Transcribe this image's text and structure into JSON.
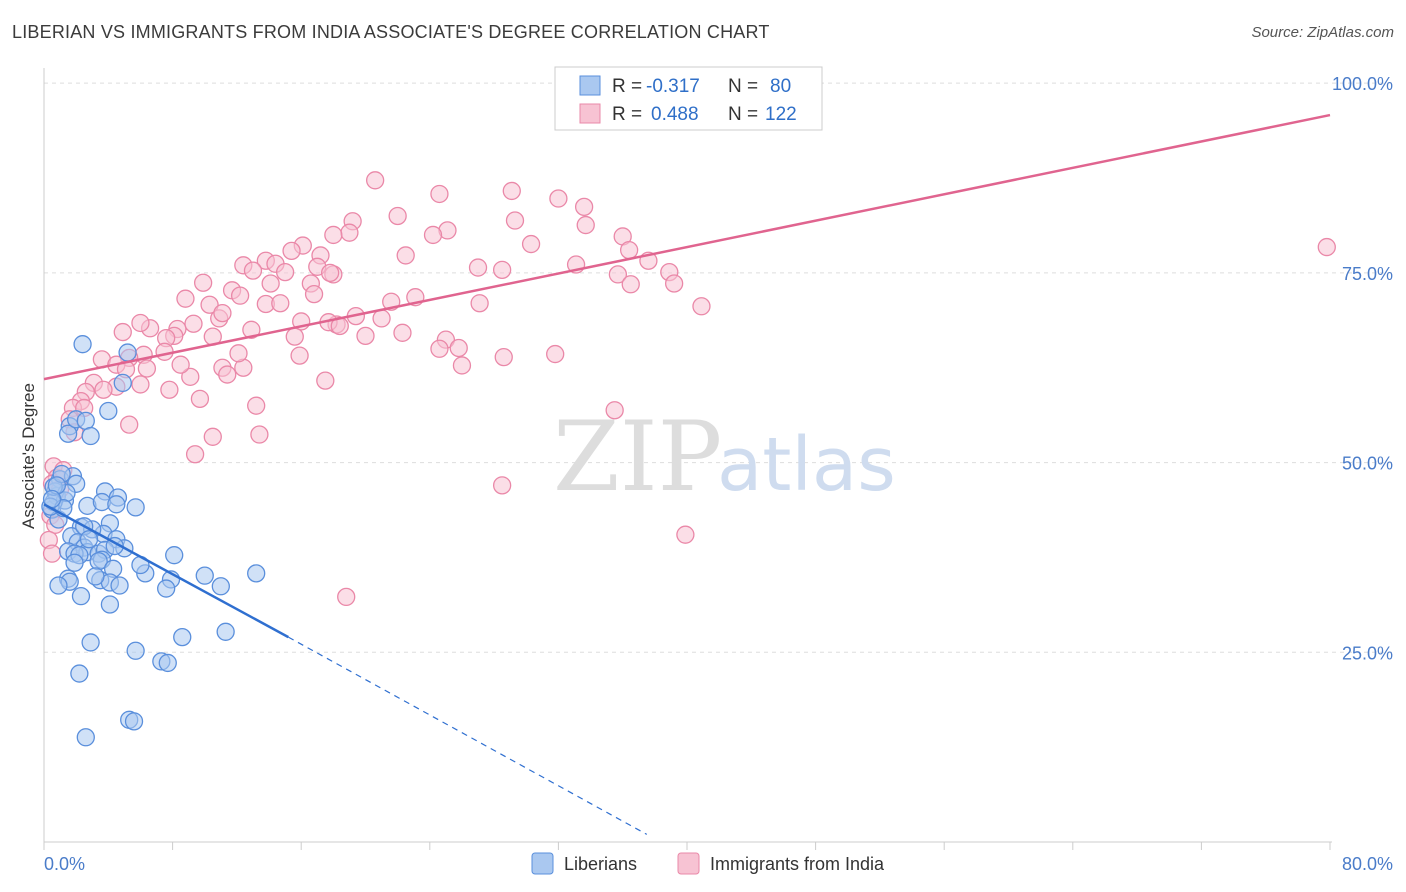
{
  "title": "LIBERIAN VS IMMIGRANTS FROM INDIA ASSOCIATE'S DEGREE CORRELATION CHART",
  "source": "Source: ZipAtlas.com",
  "watermark": {
    "zip": "ZIP",
    "atlas": "atlas"
  },
  "colors": {
    "blue_fill": "#aac8f0",
    "blue_stroke": "#5a8fdc",
    "blue_line": "#2f6fd0",
    "pink_fill": "#f7c3d3",
    "pink_stroke": "#ea88a8",
    "pink_line": "#e0648f",
    "grid": "#dddddd",
    "tick_text": "#4a7cc9"
  },
  "legend": {
    "rows": [
      {
        "r_label": "R =",
        "r_value": "-0.317",
        "n_label": "N =",
        "n_value": "80"
      },
      {
        "r_label": "R =",
        "r_value": "0.488",
        "n_label": "N =",
        "n_value": "122"
      }
    ]
  },
  "bottom_legend": [
    "Liberians",
    "Immigrants from India"
  ],
  "chart_data": {
    "type": "scatter",
    "ylabel": "Associate's Degree",
    "xlim": [
      0,
      80
    ],
    "ylim": [
      0,
      102
    ],
    "x_ticks": [
      "0.0%",
      "80.0%"
    ],
    "y_ticks": [
      {
        "value": 100,
        "label": "100.0%"
      },
      {
        "value": 75,
        "label": "75.0%"
      },
      {
        "value": 50,
        "label": "50.0%"
      },
      {
        "value": 25,
        "label": "25.0%"
      }
    ],
    "series": [
      {
        "name": "Liberians",
        "color": "blue",
        "trend": {
          "x0": 0,
          "y0": 44.5,
          "x1": 15.2,
          "y1": 27.0,
          "dash_to_x": 37.5,
          "dash_to_y": 1.0
        },
        "points": [
          [
            0.5,
            43.8
          ],
          [
            0.8,
            45.6
          ],
          [
            1.0,
            47.8
          ],
          [
            0.7,
            46.2
          ],
          [
            1.3,
            45.0
          ],
          [
            0.6,
            44.8
          ],
          [
            0.9,
            42.5
          ],
          [
            0.4,
            44.2
          ],
          [
            2.4,
            65.6
          ],
          [
            5.2,
            64.5
          ],
          [
            4.9,
            60.5
          ],
          [
            4.0,
            56.8
          ],
          [
            1.6,
            54.8
          ],
          [
            1.5,
            53.8
          ],
          [
            2.0,
            55.7
          ],
          [
            2.6,
            55.5
          ],
          [
            2.9,
            53.5
          ],
          [
            1.8,
            48.2
          ],
          [
            2.0,
            47.2
          ],
          [
            3.8,
            46.2
          ],
          [
            4.6,
            45.4
          ],
          [
            2.7,
            44.3
          ],
          [
            3.6,
            44.8
          ],
          [
            4.5,
            44.5
          ],
          [
            5.7,
            44.1
          ],
          [
            1.4,
            46.0
          ],
          [
            2.3,
            41.5
          ],
          [
            4.1,
            42.0
          ],
          [
            3.7,
            40.6
          ],
          [
            4.5,
            39.9
          ],
          [
            1.7,
            40.3
          ],
          [
            2.1,
            39.5
          ],
          [
            2.5,
            38.8
          ],
          [
            1.5,
            38.3
          ],
          [
            2.7,
            38.2
          ],
          [
            3.4,
            38.0
          ],
          [
            3.8,
            38.5
          ],
          [
            1.9,
            38.0
          ],
          [
            3.6,
            37.2
          ],
          [
            2.2,
            37.8
          ],
          [
            3.4,
            37.0
          ],
          [
            8.1,
            37.8
          ],
          [
            4.3,
            36.0
          ],
          [
            6.3,
            35.4
          ],
          [
            7.9,
            34.6
          ],
          [
            10.0,
            35.1
          ],
          [
            13.2,
            35.4
          ],
          [
            1.5,
            34.7
          ],
          [
            1.6,
            34.3
          ],
          [
            3.5,
            34.5
          ],
          [
            4.1,
            34.2
          ],
          [
            4.7,
            33.8
          ],
          [
            0.9,
            33.8
          ],
          [
            7.6,
            33.4
          ],
          [
            11.0,
            33.7
          ],
          [
            2.3,
            32.4
          ],
          [
            4.1,
            31.3
          ],
          [
            8.6,
            27.0
          ],
          [
            11.3,
            27.7
          ],
          [
            2.9,
            26.3
          ],
          [
            5.7,
            25.2
          ],
          [
            7.3,
            23.8
          ],
          [
            7.7,
            23.6
          ],
          [
            2.2,
            22.2
          ],
          [
            5.3,
            16.1
          ],
          [
            5.6,
            15.9
          ],
          [
            2.6,
            13.8
          ],
          [
            0.6,
            46.8
          ],
          [
            1.1,
            48.5
          ],
          [
            0.8,
            47.0
          ],
          [
            1.2,
            44.0
          ],
          [
            0.5,
            45.2
          ],
          [
            3.0,
            41.2
          ],
          [
            2.5,
            41.6
          ],
          [
            5.0,
            38.7
          ],
          [
            6.0,
            36.5
          ],
          [
            3.2,
            35.0
          ],
          [
            1.9,
            36.8
          ],
          [
            2.8,
            39.9
          ],
          [
            4.4,
            39.0
          ]
        ]
      },
      {
        "name": "Immigrants from India",
        "color": "pink",
        "trend": {
          "x0": 0,
          "y0": 61.0,
          "x1": 80,
          "y1": 95.8
        },
        "points": [
          [
            20.6,
            87.2
          ],
          [
            24.6,
            85.4
          ],
          [
            29.1,
            85.8
          ],
          [
            32.0,
            84.8
          ],
          [
            33.6,
            83.7
          ],
          [
            22.0,
            82.5
          ],
          [
            19.2,
            81.8
          ],
          [
            29.3,
            81.9
          ],
          [
            33.7,
            81.3
          ],
          [
            25.1,
            80.6
          ],
          [
            19.0,
            80.3
          ],
          [
            18.0,
            80.0
          ],
          [
            24.2,
            80.0
          ],
          [
            36.0,
            79.8
          ],
          [
            22.5,
            77.3
          ],
          [
            16.1,
            78.6
          ],
          [
            15.4,
            77.9
          ],
          [
            17.2,
            77.3
          ],
          [
            30.3,
            78.8
          ],
          [
            36.4,
            78.0
          ],
          [
            79.8,
            78.4
          ],
          [
            13.8,
            76.6
          ],
          [
            14.4,
            76.2
          ],
          [
            12.4,
            76.0
          ],
          [
            13.0,
            75.3
          ],
          [
            15.0,
            75.1
          ],
          [
            17.0,
            75.8
          ],
          [
            18.0,
            74.8
          ],
          [
            17.8,
            75.0
          ],
          [
            27.0,
            75.7
          ],
          [
            28.5,
            75.4
          ],
          [
            33.1,
            76.1
          ],
          [
            35.7,
            74.8
          ],
          [
            9.9,
            73.7
          ],
          [
            11.7,
            72.7
          ],
          [
            12.2,
            72.0
          ],
          [
            8.8,
            71.6
          ],
          [
            16.6,
            73.6
          ],
          [
            14.1,
            73.6
          ],
          [
            16.8,
            72.2
          ],
          [
            13.8,
            70.9
          ],
          [
            10.3,
            70.8
          ],
          [
            10.9,
            69.0
          ],
          [
            11.1,
            69.7
          ],
          [
            16.0,
            68.6
          ],
          [
            19.4,
            69.3
          ],
          [
            18.2,
            68.2
          ],
          [
            17.7,
            68.5
          ],
          [
            21.6,
            71.2
          ],
          [
            23.1,
            71.8
          ],
          [
            27.1,
            71.0
          ],
          [
            36.5,
            73.5
          ],
          [
            40.9,
            70.6
          ],
          [
            6.6,
            67.7
          ],
          [
            4.9,
            67.2
          ],
          [
            8.3,
            67.6
          ],
          [
            8.1,
            66.7
          ],
          [
            7.6,
            66.4
          ],
          [
            9.3,
            68.3
          ],
          [
            10.5,
            66.6
          ],
          [
            12.9,
            67.5
          ],
          [
            15.6,
            66.6
          ],
          [
            18.4,
            68.0
          ],
          [
            20.0,
            66.7
          ],
          [
            22.3,
            67.1
          ],
          [
            25.0,
            66.2
          ],
          [
            25.8,
            65.1
          ],
          [
            24.6,
            65.0
          ],
          [
            15.9,
            64.1
          ],
          [
            6.2,
            64.2
          ],
          [
            7.5,
            64.6
          ],
          [
            5.3,
            63.8
          ],
          [
            3.6,
            63.6
          ],
          [
            4.5,
            62.9
          ],
          [
            11.1,
            62.5
          ],
          [
            5.1,
            62.3
          ],
          [
            6.4,
            62.4
          ],
          [
            12.4,
            62.5
          ],
          [
            9.1,
            61.3
          ],
          [
            11.4,
            61.6
          ],
          [
            4.5,
            60.0
          ],
          [
            6.0,
            60.3
          ],
          [
            7.8,
            59.6
          ],
          [
            3.1,
            60.5
          ],
          [
            2.6,
            59.3
          ],
          [
            3.7,
            59.6
          ],
          [
            2.3,
            58.1
          ],
          [
            1.8,
            57.2
          ],
          [
            2.5,
            57.2
          ],
          [
            1.6,
            55.7
          ],
          [
            5.3,
            55.0
          ],
          [
            1.9,
            54.0
          ],
          [
            10.5,
            53.4
          ],
          [
            13.4,
            53.7
          ],
          [
            13.2,
            57.5
          ],
          [
            17.5,
            60.8
          ],
          [
            35.5,
            56.9
          ],
          [
            31.8,
            64.3
          ],
          [
            28.6,
            63.9
          ],
          [
            37.6,
            76.6
          ],
          [
            38.9,
            75.1
          ],
          [
            39.2,
            73.6
          ],
          [
            0.6,
            49.5
          ],
          [
            0.8,
            48.0
          ],
          [
            1.2,
            49.0
          ],
          [
            0.5,
            47.2
          ],
          [
            1.0,
            46.5
          ],
          [
            0.4,
            43.0
          ],
          [
            0.7,
            41.8
          ],
          [
            0.3,
            39.8
          ],
          [
            0.5,
            38.0
          ],
          [
            9.4,
            51.1
          ],
          [
            28.5,
            47.0
          ],
          [
            39.9,
            40.5
          ],
          [
            18.8,
            32.3
          ],
          [
            6.0,
            68.4
          ],
          [
            8.5,
            62.9
          ],
          [
            9.7,
            58.4
          ],
          [
            12.1,
            64.4
          ],
          [
            14.7,
            71.0
          ],
          [
            21.0,
            69.0
          ],
          [
            26.0,
            62.8
          ]
        ]
      }
    ]
  }
}
